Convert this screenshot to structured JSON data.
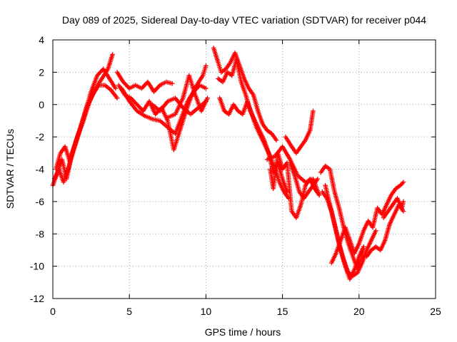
{
  "chart_data": {
    "type": "scatter",
    "title": "Day 089 of 2025, Sidereal Day-to-day VTEC variation (SDTVAR) for receiver p044",
    "xlabel": "GPS time / hours",
    "ylabel": "SDTVAR / TECUs",
    "xlim": [
      0,
      25
    ],
    "ylim": [
      -12,
      4
    ],
    "xticks": [
      0,
      5,
      10,
      15,
      20,
      25
    ],
    "xtick_labels": [
      "0",
      "5",
      "10",
      "15",
      "20",
      "25"
    ],
    "yticks": [
      4,
      2,
      0,
      -2,
      -4,
      -6,
      -8,
      -10,
      -12
    ],
    "ytick_labels": [
      "4",
      "2",
      "0",
      "-2",
      "-4",
      "-6",
      "-8",
      "-10",
      "-12"
    ],
    "grid": true,
    "marker": "+",
    "color": "#ff0000",
    "series": [
      {
        "traces": [
          [
            [
              0.0,
              -5.0
            ],
            [
              0.3,
              -4.2
            ],
            [
              0.6,
              -3.4
            ],
            [
              0.9,
              -4.6
            ],
            [
              1.2,
              -3.2
            ],
            [
              1.6,
              -2.0
            ],
            [
              2.0,
              -1.0
            ],
            [
              2.4,
              0.2
            ],
            [
              2.8,
              1.0
            ],
            [
              3.2,
              1.6
            ],
            [
              3.6,
              2.2
            ],
            [
              3.9,
              3.1
            ]
          ],
          [
            [
              0.2,
              -4.0
            ],
            [
              0.5,
              -3.0
            ],
            [
              0.8,
              -2.6
            ],
            [
              1.1,
              -3.5
            ],
            [
              1.4,
              -2.6
            ],
            [
              1.8,
              -1.4
            ],
            [
              2.2,
              -0.2
            ],
            [
              2.6,
              0.6
            ],
            [
              3.0,
              1.2
            ],
            [
              3.4,
              1.2
            ],
            [
              3.8,
              0.9
            ],
            [
              4.2,
              0.4
            ]
          ],
          [
            [
              0.1,
              -4.6
            ],
            [
              0.4,
              -4.0
            ],
            [
              0.7,
              -4.8
            ],
            [
              1.0,
              -4.0
            ],
            [
              1.3,
              -3.0
            ],
            [
              1.7,
              -1.8
            ],
            [
              2.1,
              -0.5
            ],
            [
              2.5,
              0.8
            ],
            [
              2.9,
              1.8
            ],
            [
              3.3,
              2.2
            ],
            [
              3.7,
              1.6
            ],
            [
              4.1,
              1.0
            ]
          ],
          [
            [
              4.2,
              2.0
            ],
            [
              4.6,
              1.4
            ],
            [
              5.0,
              1.0
            ],
            [
              5.4,
              1.2
            ],
            [
              5.8,
              1.0
            ],
            [
              6.2,
              1.4
            ],
            [
              6.6,
              0.8
            ],
            [
              7.0,
              1.2
            ],
            [
              7.4,
              1.4
            ],
            [
              7.8,
              1.3
            ]
          ],
          [
            [
              4.3,
              1.2
            ],
            [
              4.7,
              0.6
            ],
            [
              5.1,
              0.4
            ],
            [
              5.5,
              0.0
            ],
            [
              5.9,
              -0.4
            ],
            [
              6.3,
              0.2
            ],
            [
              6.7,
              -0.6
            ],
            [
              7.1,
              -0.2
            ],
            [
              7.5,
              -1.0
            ],
            [
              7.9,
              -2.8
            ],
            [
              8.3,
              -1.6
            ],
            [
              8.7,
              -0.4
            ],
            [
              9.0,
              0.4
            ],
            [
              9.4,
              1.2
            ],
            [
              9.8,
              1.8
            ],
            [
              10.0,
              2.4
            ]
          ],
          [
            [
              4.5,
              1.0
            ],
            [
              5.0,
              0.2
            ],
            [
              5.5,
              -0.4
            ],
            [
              6.0,
              -0.7
            ],
            [
              6.5,
              -0.9
            ],
            [
              7.0,
              -1.0
            ],
            [
              7.5,
              -1.4
            ],
            [
              8.0,
              -1.8
            ],
            [
              8.4,
              -0.8
            ],
            [
              8.8,
              0.2
            ],
            [
              9.2,
              0.8
            ],
            [
              9.6,
              1.2
            ],
            [
              10.0,
              1.0
            ]
          ],
          [
            [
              6.5,
              0.0
            ],
            [
              7.0,
              -0.4
            ],
            [
              7.5,
              0.2
            ],
            [
              8.0,
              0.4
            ],
            [
              8.5,
              -0.2
            ],
            [
              9.0,
              -0.6
            ],
            [
              9.5,
              -0.2
            ],
            [
              10.0,
              0.2
            ]
          ],
          [
            [
              7.5,
              -0.8
            ],
            [
              8.0,
              -0.6
            ],
            [
              8.5,
              0.4
            ],
            [
              8.9,
              1.8
            ],
            [
              9.3,
              0.6
            ],
            [
              9.7,
              -0.4
            ],
            [
              10.1,
              0.4
            ]
          ],
          [
            [
              10.5,
              3.5
            ],
            [
              10.8,
              2.6
            ],
            [
              11.0,
              2.0
            ],
            [
              11.3,
              2.2
            ],
            [
              11.6,
              2.6
            ],
            [
              11.9,
              3.2
            ],
            [
              12.2,
              2.4
            ],
            [
              12.5,
              1.6
            ],
            [
              12.8,
              1.0
            ],
            [
              13.1,
              0.6
            ],
            [
              13.4,
              -0.4
            ],
            [
              13.7,
              -1.2
            ],
            [
              14.0,
              -1.6
            ],
            [
              14.3,
              -1.8
            ],
            [
              14.6,
              -2.2
            ]
          ],
          [
            [
              10.9,
              0.4
            ],
            [
              11.2,
              -0.4
            ],
            [
              11.5,
              -0.6
            ],
            [
              11.8,
              0.0
            ],
            [
              12.1,
              -0.4
            ],
            [
              12.4,
              -0.6
            ],
            [
              12.7,
              0.2
            ],
            [
              13.0,
              -0.6
            ],
            [
              13.3,
              -1.4
            ],
            [
              13.6,
              -2.0
            ],
            [
              13.9,
              -2.6
            ],
            [
              14.2,
              -3.2
            ],
            [
              14.5,
              -4.0
            ],
            [
              14.8,
              -4.8
            ],
            [
              15.1,
              -5.4
            ],
            [
              15.4,
              -5.8
            ]
          ],
          [
            [
              10.8,
              1.6
            ],
            [
              11.1,
              1.4
            ],
            [
              11.4,
              2.0
            ],
            [
              11.7,
              1.8
            ],
            [
              12.0,
              2.8
            ],
            [
              12.3,
              1.4
            ],
            [
              12.6,
              0.6
            ],
            [
              12.9,
              -0.4
            ],
            [
              13.2,
              -1.0
            ],
            [
              13.5,
              -1.6
            ],
            [
              13.8,
              -2.2
            ],
            [
              14.1,
              -3.0
            ],
            [
              14.4,
              -4.2
            ],
            [
              14.7,
              -3.6
            ],
            [
              15.0,
              -4.6
            ],
            [
              15.3,
              -5.4
            ]
          ],
          [
            [
              14.2,
              -4.0
            ],
            [
              14.4,
              -5.2
            ],
            [
              14.7,
              -3.0
            ],
            [
              15.0,
              -4.0
            ],
            [
              15.3,
              -3.6
            ],
            [
              15.6,
              -6.6
            ],
            [
              15.9,
              -7.0
            ],
            [
              16.2,
              -6.2
            ],
            [
              16.5,
              -5.0
            ],
            [
              16.8,
              -4.6
            ],
            [
              17.1,
              -5.2
            ],
            [
              17.4,
              -5.6
            ]
          ],
          [
            [
              15.5,
              -3.6
            ],
            [
              15.8,
              -4.4
            ],
            [
              16.1,
              -5.4
            ],
            [
              16.4,
              -5.8
            ],
            [
              16.7,
              -5.4
            ],
            [
              17.0,
              -5.0
            ],
            [
              17.3,
              -4.6
            ]
          ],
          [
            [
              15.2,
              -2.0
            ],
            [
              15.6,
              -2.6
            ],
            [
              15.9,
              -3.0
            ],
            [
              16.2,
              -2.6
            ],
            [
              16.5,
              -2.2
            ],
            [
              16.8,
              -1.6
            ],
            [
              17.0,
              -0.4
            ]
          ],
          [
            [
              14.0,
              -3.4
            ],
            [
              14.5,
              -3.2
            ],
            [
              15.0,
              -2.6
            ],
            [
              15.5,
              -3.4
            ],
            [
              16.0,
              -4.4
            ],
            [
              16.5,
              -4.8
            ],
            [
              17.0,
              -4.6
            ],
            [
              17.4,
              -5.6
            ]
          ],
          [
            [
              17.5,
              -4.2
            ],
            [
              17.8,
              -3.8
            ],
            [
              18.1,
              -4.0
            ],
            [
              18.4,
              -5.4
            ],
            [
              18.7,
              -6.4
            ],
            [
              19.0,
              -7.6
            ],
            [
              19.3,
              -8.6
            ],
            [
              19.6,
              -9.4
            ],
            [
              19.9,
              -10.2
            ],
            [
              20.1,
              -9.6
            ],
            [
              20.3,
              -8.8
            ]
          ],
          [
            [
              17.8,
              -5.0
            ],
            [
              18.1,
              -6.2
            ],
            [
              18.4,
              -7.4
            ],
            [
              18.7,
              -8.6
            ],
            [
              19.0,
              -9.6
            ],
            [
              19.3,
              -10.4
            ],
            [
              19.6,
              -10.6
            ],
            [
              19.9,
              -10.4
            ],
            [
              20.2,
              -9.8
            ],
            [
              20.5,
              -9.0
            ],
            [
              20.8,
              -8.4
            ],
            [
              21.1,
              -7.8
            ]
          ],
          [
            [
              17.6,
              -5.4
            ],
            [
              17.9,
              -5.8
            ],
            [
              18.2,
              -6.6
            ],
            [
              18.5,
              -7.8
            ],
            [
              18.8,
              -9.0
            ],
            [
              19.1,
              -10.0
            ],
            [
              19.4,
              -10.8
            ],
            [
              19.7,
              -10.2
            ],
            [
              20.0,
              -9.4
            ],
            [
              20.3,
              -8.8
            ]
          ],
          [
            [
              18.2,
              -9.8
            ],
            [
              18.5,
              -9.2
            ],
            [
              18.8,
              -8.4
            ],
            [
              19.1,
              -7.6
            ],
            [
              19.4,
              -8.4
            ],
            [
              19.7,
              -9.2
            ],
            [
              20.0,
              -8.6
            ],
            [
              20.3,
              -7.8
            ],
            [
              20.6,
              -7.2
            ],
            [
              20.9,
              -7.6
            ],
            [
              21.2,
              -6.4
            ],
            [
              21.5,
              -6.8
            ],
            [
              21.8,
              -6.2
            ],
            [
              22.1,
              -5.6
            ],
            [
              22.4,
              -5.2
            ],
            [
              22.7,
              -5.0
            ],
            [
              22.9,
              -4.8
            ]
          ],
          [
            [
              20.5,
              -9.4
            ],
            [
              20.8,
              -9.0
            ],
            [
              21.1,
              -8.8
            ],
            [
              21.4,
              -9.0
            ],
            [
              21.7,
              -8.4
            ],
            [
              22.0,
              -7.4
            ],
            [
              22.3,
              -6.8
            ],
            [
              22.6,
              -6.2
            ],
            [
              22.9,
              -6.6
            ]
          ],
          [
            [
              21.6,
              -7.0
            ],
            [
              21.9,
              -6.6
            ],
            [
              22.2,
              -6.2
            ],
            [
              22.5,
              -5.8
            ],
            [
              22.8,
              -6.4
            ],
            [
              22.9,
              -6.0
            ]
          ]
        ]
      }
    ]
  }
}
